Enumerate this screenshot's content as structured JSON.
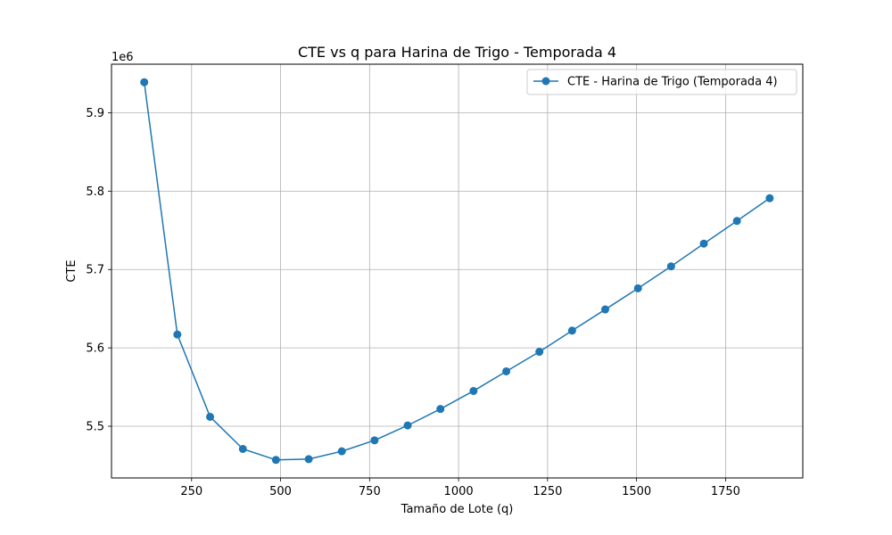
{
  "chart_data": {
    "type": "line",
    "title": "CTE vs q para Harina de Trigo - Temporada 4",
    "xlabel": "Tamaño de Lote (q)",
    "ylabel": "CTE",
    "y_offset_label": "1e6",
    "y_scale_factor": 1000000,
    "xlim": [
      25,
      1967
    ],
    "ylim": [
      5.434,
      5.962
    ],
    "x_ticks": [
      250,
      500,
      750,
      1000,
      1250,
      1500,
      1750
    ],
    "y_ticks": [
      5.5,
      5.6,
      5.7,
      5.8,
      5.9
    ],
    "x_tick_labels": [
      "250",
      "500",
      "750",
      "1000",
      "1250",
      "1500",
      "1750"
    ],
    "y_tick_labels": [
      "5.5",
      "5.6",
      "5.7",
      "5.8",
      "5.9"
    ],
    "grid": true,
    "legend_position": "top-right",
    "series": [
      {
        "name": "CTE - Harina de Trigo (Temporada 4)",
        "color": "#1f77b4",
        "marker": "circle",
        "x": [
          117,
          210,
          302,
          394,
          487,
          579,
          672,
          764,
          857,
          949,
          1042,
          1134,
          1227,
          1319,
          1412,
          1504,
          1597,
          1689,
          1782,
          1874
        ],
        "y": [
          5.939,
          5.617,
          5.512,
          5.471,
          5.457,
          5.458,
          5.468,
          5.482,
          5.501,
          5.522,
          5.545,
          5.57,
          5.595,
          5.622,
          5.649,
          5.676,
          5.704,
          5.733,
          5.762,
          5.791
        ]
      }
    ]
  }
}
